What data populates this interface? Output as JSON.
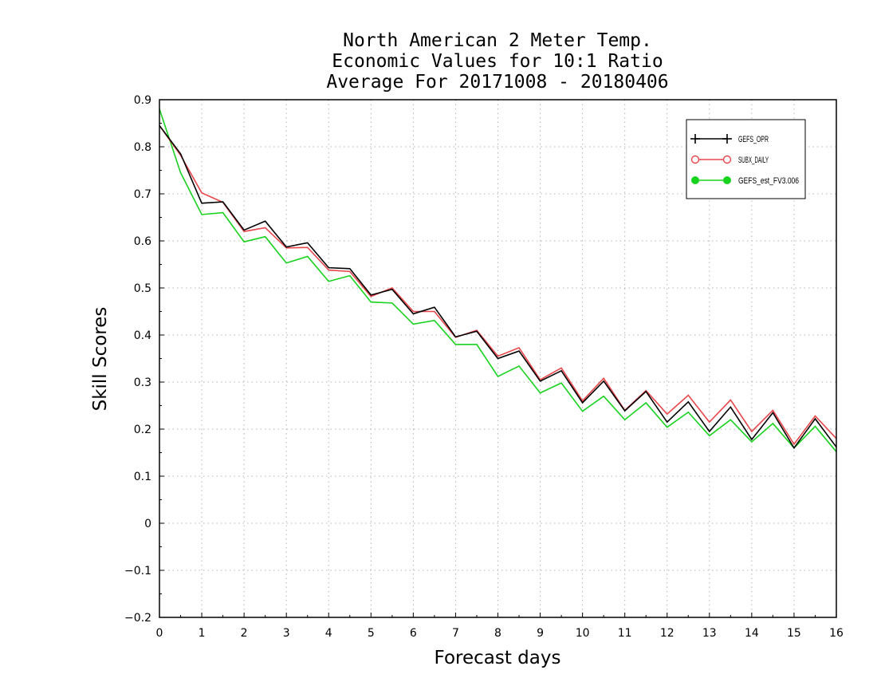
{
  "chart_data": {
    "type": "line",
    "title": [
      "North American 2 Meter Temp.",
      "Economic Values for 10:1 Ratio",
      "Average For 20171008 - 20180406"
    ],
    "xlabel": "Forecast days",
    "ylabel": "Skill Scores",
    "xlim": [
      0,
      16
    ],
    "ylim": [
      -0.2,
      0.9
    ],
    "xticks": [
      0,
      1,
      2,
      3,
      4,
      5,
      6,
      7,
      8,
      9,
      10,
      11,
      12,
      13,
      14,
      15,
      16
    ],
    "yticks": [
      -0.2,
      -0.1,
      0,
      0.1,
      0.2,
      0.3,
      0.4,
      0.5,
      0.6,
      0.7,
      0.8,
      0.9
    ],
    "ytick_labels": [
      "−0.2",
      "−0.1",
      "0",
      "0.1",
      "0.2",
      "0.3",
      "0.4",
      "0.5",
      "0.6",
      "0.7",
      "0.8",
      "0.9"
    ],
    "grid": true,
    "legend_position": "top-right",
    "x": [
      0,
      0.5,
      1,
      1.5,
      2,
      2.5,
      3,
      3.5,
      4,
      4.5,
      5,
      5.5,
      6,
      6.5,
      7,
      7.5,
      8,
      8.5,
      9,
      9.5,
      10,
      10.5,
      11,
      11.5,
      12,
      12.5,
      13,
      13.5,
      14,
      14.5,
      15,
      15.5,
      16
    ],
    "series": [
      {
        "name": "GEFS_OPR",
        "color": "#000000",
        "marker": "plus",
        "values": [
          0.845,
          0.785,
          0.68,
          0.683,
          0.623,
          0.642,
          0.587,
          0.596,
          0.543,
          0.541,
          0.485,
          0.497,
          0.445,
          0.459,
          0.396,
          0.408,
          0.35,
          0.366,
          0.302,
          0.324,
          0.256,
          0.302,
          0.239,
          0.28,
          0.215,
          0.258,
          0.195,
          0.247,
          0.178,
          0.235,
          0.16,
          0.222,
          0.162
        ]
      },
      {
        "name": "SUBX_DAILY",
        "color": "#e8464a",
        "marker": "open-circle",
        "values": [
          0.845,
          0.782,
          0.702,
          0.682,
          0.62,
          0.628,
          0.585,
          0.586,
          0.538,
          0.535,
          0.482,
          0.5,
          0.45,
          0.45,
          0.395,
          0.41,
          0.355,
          0.373,
          0.305,
          0.33,
          0.26,
          0.308,
          0.24,
          0.282,
          0.232,
          0.272,
          0.215,
          0.262,
          0.195,
          0.24,
          0.168,
          0.228,
          0.18
        ]
      },
      {
        "name": "GEFS_est_FV3.006",
        "color": "#18d21e",
        "marker": "filled-circle",
        "values": [
          0.88,
          0.745,
          0.656,
          0.66,
          0.598,
          0.609,
          0.553,
          0.567,
          0.514,
          0.526,
          0.47,
          0.468,
          0.423,
          0.431,
          0.38,
          0.38,
          0.312,
          0.334,
          0.277,
          0.298,
          0.238,
          0.27,
          0.22,
          0.256,
          0.204,
          0.236,
          0.186,
          0.22,
          0.173,
          0.212,
          0.16,
          0.206,
          0.152
        ]
      }
    ]
  }
}
